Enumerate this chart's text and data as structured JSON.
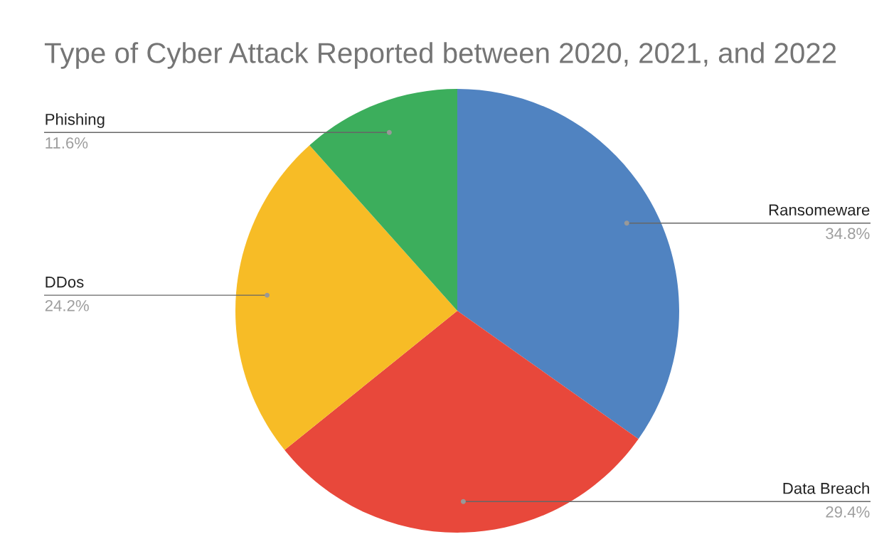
{
  "chart_data": {
    "type": "pie",
    "title": "Type of Cyber Attack Reported between 2020, 2021, and 2022",
    "categories": [
      "Ransomeware",
      "Data Breach",
      "DDos",
      "Phishing"
    ],
    "values": [
      34.8,
      29.4,
      24.2,
      11.6
    ],
    "value_labels": [
      "34.8%",
      "29.4%",
      "24.2%",
      "11.6%"
    ],
    "colors": [
      "#5083c1",
      "#e8483b",
      "#f7bc26",
      "#3cae5c"
    ],
    "legend": false
  }
}
